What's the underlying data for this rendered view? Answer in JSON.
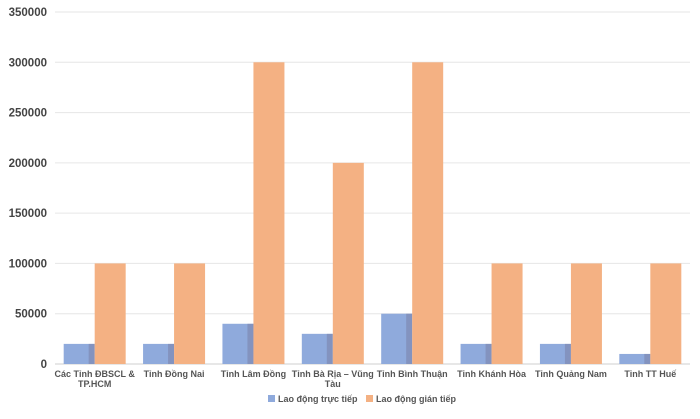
{
  "chart_data": {
    "type": "bar",
    "title": "",
    "xlabel": "",
    "ylabel": "",
    "ylim": [
      0,
      350000
    ],
    "yticks": [
      0,
      50000,
      100000,
      150000,
      200000,
      250000,
      300000,
      350000
    ],
    "grid": true,
    "legend_position": "bottom",
    "categories": [
      [
        "Các Tỉnh ĐBSCL &",
        "TP.HCM"
      ],
      [
        "Tỉnh Đồng Nai"
      ],
      [
        "Tỉnh Lâm Đồng"
      ],
      [
        "Tỉnh Bà Rịa – Vũng",
        "Tàu"
      ],
      [
        "Tỉnh Bình Thuận"
      ],
      [
        "Tỉnh Khánh Hòa"
      ],
      [
        "Tỉnh Quảng Nam"
      ],
      [
        "Tỉnh TT Huế"
      ]
    ],
    "series": [
      {
        "name": "Lao động trực tiếp",
        "color": "#8faadc",
        "values": [
          20000,
          20000,
          40000,
          30000,
          50000,
          20000,
          20000,
          10000
        ]
      },
      {
        "name": "Lao động gián tiếp",
        "color": "#f4b183",
        "values": [
          100000,
          100000,
          300000,
          200000,
          300000,
          100000,
          100000,
          100000
        ]
      }
    ]
  }
}
